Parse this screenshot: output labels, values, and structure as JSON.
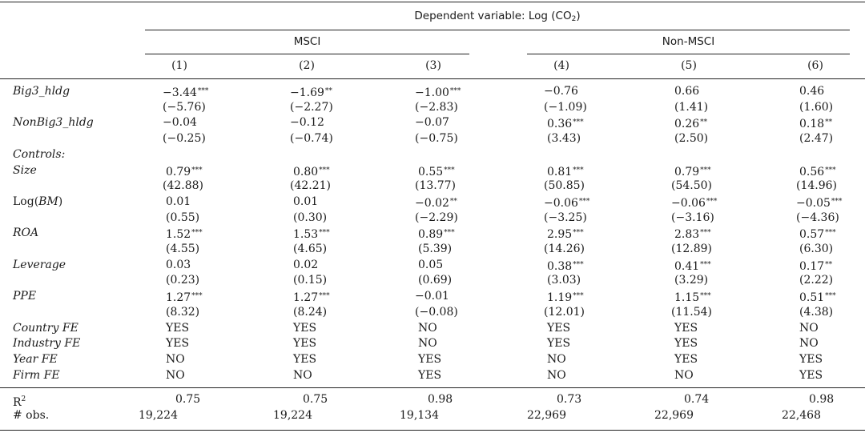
{
  "header": {
    "dep_var_prefix": "Dependent variable: Log (CO",
    "dep_var_sub": "2",
    "dep_var_suffix": ")",
    "groups": [
      "MSCI",
      "Non-MSCI"
    ],
    "columns": [
      "(1)",
      "(2)",
      "(3)",
      "(4)",
      "(5)",
      "(6)"
    ]
  },
  "rows": [
    {
      "label": "Big3_hldg",
      "italic": true,
      "cells": [
        [
          "−3.44",
          "***"
        ],
        [
          "−1.69",
          "**"
        ],
        [
          "−1.00",
          "***"
        ],
        [
          "−0.76",
          ""
        ],
        [
          "0.66",
          ""
        ],
        [
          "0.46",
          ""
        ]
      ]
    },
    {
      "label": "",
      "italic": false,
      "cells": [
        [
          "(−5.76)",
          ""
        ],
        [
          "(−2.27)",
          ""
        ],
        [
          "(−2.83)",
          ""
        ],
        [
          "(−1.09)",
          ""
        ],
        [
          "(1.41)",
          ""
        ],
        [
          "(1.60)",
          ""
        ]
      ]
    },
    {
      "label": "NonBig3_hldg",
      "italic": true,
      "cells": [
        [
          "−0.04",
          ""
        ],
        [
          "−0.12",
          ""
        ],
        [
          "−0.07",
          ""
        ],
        [
          "0.36",
          "***"
        ],
        [
          "0.26",
          "**"
        ],
        [
          "0.18",
          "**"
        ]
      ]
    },
    {
      "label": "",
      "italic": false,
      "cells": [
        [
          "(−0.25)",
          ""
        ],
        [
          "(−0.74)",
          ""
        ],
        [
          "(−0.75)",
          ""
        ],
        [
          "(3.43)",
          ""
        ],
        [
          "(2.50)",
          ""
        ],
        [
          "(2.47)",
          ""
        ]
      ]
    },
    {
      "label": "Controls:",
      "italic": true,
      "cells": []
    },
    {
      "label": "Size",
      "italic": true,
      "cells": [
        [
          "0.79",
          "***"
        ],
        [
          "0.80",
          "***"
        ],
        [
          "0.55",
          "***"
        ],
        [
          "0.81",
          "***"
        ],
        [
          "0.79",
          "***"
        ],
        [
          "0.56",
          "***"
        ]
      ]
    },
    {
      "label": "",
      "italic": false,
      "cells": [
        [
          "(42.88)",
          ""
        ],
        [
          "(42.21)",
          ""
        ],
        [
          "(13.77)",
          ""
        ],
        [
          "(50.85)",
          ""
        ],
        [
          "(54.50)",
          ""
        ],
        [
          "(14.96)",
          ""
        ]
      ]
    },
    {
      "label": "Log(BM)",
      "italic": false,
      "cells": [
        [
          "0.01",
          ""
        ],
        [
          "0.01",
          ""
        ],
        [
          "−0.02",
          "**"
        ],
        [
          "−0.06",
          "***"
        ],
        [
          "−0.06",
          "***"
        ],
        [
          "−0.05",
          "***"
        ]
      ]
    },
    {
      "label": "",
      "italic": false,
      "cells": [
        [
          "(0.55)",
          ""
        ],
        [
          "(0.30)",
          ""
        ],
        [
          "(−2.29)",
          ""
        ],
        [
          "(−3.25)",
          ""
        ],
        [
          "(−3.16)",
          ""
        ],
        [
          "(−4.36)",
          ""
        ]
      ]
    },
    {
      "label": "ROA",
      "italic": true,
      "cells": [
        [
          "1.52",
          "***"
        ],
        [
          "1.53",
          "***"
        ],
        [
          "0.89",
          "***"
        ],
        [
          "2.95",
          "***"
        ],
        [
          "2.83",
          "***"
        ],
        [
          "0.57",
          "***"
        ]
      ]
    },
    {
      "label": "",
      "italic": false,
      "cells": [
        [
          "(4.55)",
          ""
        ],
        [
          "(4.65)",
          ""
        ],
        [
          "(5.39)",
          ""
        ],
        [
          "(14.26)",
          ""
        ],
        [
          "(12.89)",
          ""
        ],
        [
          "(6.30)",
          ""
        ]
      ]
    },
    {
      "label": "Leverage",
      "italic": true,
      "cells": [
        [
          "0.03",
          ""
        ],
        [
          "0.02",
          ""
        ],
        [
          "0.05",
          ""
        ],
        [
          "0.38",
          "***"
        ],
        [
          "0.41",
          "***"
        ],
        [
          "0.17",
          "**"
        ]
      ]
    },
    {
      "label": "",
      "italic": false,
      "cells": [
        [
          "(0.23)",
          ""
        ],
        [
          "(0.15)",
          ""
        ],
        [
          "(0.69)",
          ""
        ],
        [
          "(3.03)",
          ""
        ],
        [
          "(3.29)",
          ""
        ],
        [
          "(2.22)",
          ""
        ]
      ]
    },
    {
      "label": "PPE",
      "italic": true,
      "cells": [
        [
          "1.27",
          "***"
        ],
        [
          "1.27",
          "***"
        ],
        [
          "−0.01",
          ""
        ],
        [
          "1.19",
          "***"
        ],
        [
          "1.15",
          "***"
        ],
        [
          "0.51",
          "***"
        ]
      ]
    },
    {
      "label": "",
      "italic": false,
      "cells": [
        [
          "(8.32)",
          ""
        ],
        [
          "(8.24)",
          ""
        ],
        [
          "(−0.08)",
          ""
        ],
        [
          "(12.01)",
          ""
        ],
        [
          "(11.54)",
          ""
        ],
        [
          "(4.38)",
          ""
        ]
      ]
    },
    {
      "label": "Country FE",
      "italic": true,
      "cells": [
        [
          "YES",
          ""
        ],
        [
          "YES",
          ""
        ],
        [
          "NO",
          ""
        ],
        [
          "YES",
          ""
        ],
        [
          "YES",
          ""
        ],
        [
          "NO",
          ""
        ]
      ]
    },
    {
      "label": "Industry FE",
      "italic": true,
      "cells": [
        [
          "YES",
          ""
        ],
        [
          "YES",
          ""
        ],
        [
          "NO",
          ""
        ],
        [
          "YES",
          ""
        ],
        [
          "YES",
          ""
        ],
        [
          "NO",
          ""
        ]
      ]
    },
    {
      "label": "Year FE",
      "italic": true,
      "cells": [
        [
          "NO",
          ""
        ],
        [
          "YES",
          ""
        ],
        [
          "YES",
          ""
        ],
        [
          "NO",
          ""
        ],
        [
          "YES",
          ""
        ],
        [
          "YES",
          ""
        ]
      ]
    },
    {
      "label": "Firm FE",
      "italic": true,
      "cells": [
        [
          "NO",
          ""
        ],
        [
          "NO",
          ""
        ],
        [
          "YES",
          ""
        ],
        [
          "NO",
          ""
        ],
        [
          "NO",
          ""
        ],
        [
          "YES",
          ""
        ]
      ]
    }
  ],
  "stats": {
    "r2_label": "R",
    "r2_sup": "2",
    "r2_values": [
      "0.75",
      "0.75",
      "0.98",
      "0.73",
      "0.74",
      "0.98"
    ],
    "obs_label": "# obs.",
    "obs_values": [
      "19,224",
      "19,224",
      "19,134",
      "22,969",
      "22,969",
      "22,468"
    ]
  }
}
